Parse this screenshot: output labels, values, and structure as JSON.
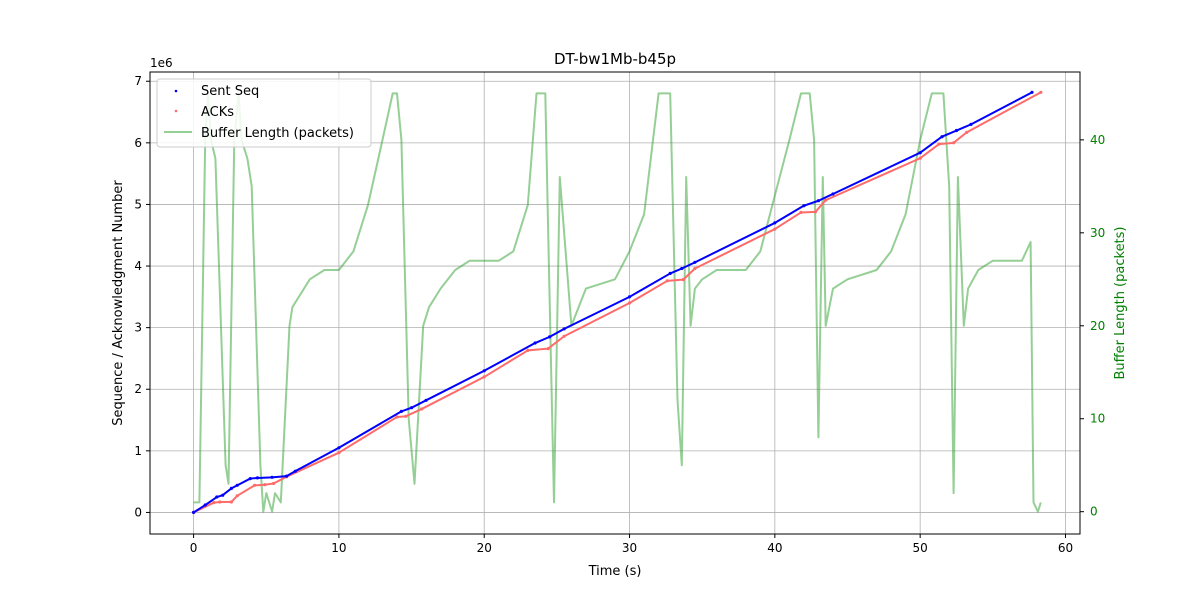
{
  "chart_data": {
    "type": "scatter",
    "title": "DT-bw1Mb-b45p",
    "xlabel": "Time (s)",
    "ylabel": "Sequence / Acknowledgment Number",
    "y_offset_label": "1e6",
    "y2label": "Buffer Length (packets)",
    "xlim": [
      -3,
      61
    ],
    "ylim": [
      -0.35,
      7.15
    ],
    "y2lim": [
      -2.4,
      47.3
    ],
    "x_ticks": [
      0,
      10,
      20,
      30,
      40,
      50,
      60
    ],
    "y_ticks": [
      0,
      1,
      2,
      3,
      4,
      5,
      6,
      7
    ],
    "y2_ticks": [
      0,
      10,
      20,
      30,
      40
    ],
    "grid": true,
    "legend_position": "top-left",
    "colors": {
      "sent": "#0000ff",
      "acks": "#ff6b6b",
      "buffer": "#2ca02c",
      "right_axis": "#008000"
    },
    "series": [
      {
        "name": "Sent Seq",
        "axis": "left",
        "style": "scatter",
        "x": [
          0,
          0.8,
          1.6,
          2.0,
          2.6,
          3.0,
          3.9,
          4.4,
          5.4,
          6.4,
          7.0,
          10.0,
          14.3,
          15.0,
          16.0,
          20.0,
          23.5,
          24.5,
          25.5,
          30.0,
          32.8,
          33.6,
          34.5,
          40.0,
          42.0,
          43.0,
          44.0,
          50.0,
          51.5,
          52.5,
          53.5,
          57.7
        ],
        "values": [
          0,
          0.12,
          0.25,
          0.28,
          0.39,
          0.44,
          0.55,
          0.56,
          0.57,
          0.59,
          0.67,
          1.05,
          1.64,
          1.7,
          1.82,
          2.3,
          2.75,
          2.85,
          2.98,
          3.5,
          3.88,
          3.96,
          4.06,
          4.7,
          4.98,
          5.06,
          5.17,
          5.84,
          6.1,
          6.2,
          6.3,
          6.82
        ]
      },
      {
        "name": "ACKs",
        "axis": "left",
        "style": "scatter",
        "x": [
          0,
          1.4,
          1.8,
          2.6,
          3.0,
          4.2,
          4.9,
          5.5,
          6.4,
          10.0,
          14.0,
          14.6,
          15.7,
          20.0,
          23.0,
          24.4,
          25.5,
          30.0,
          32.6,
          33.7,
          34.5,
          40.0,
          41.8,
          42.8,
          43.5,
          50.0,
          51.3,
          52.3,
          53.2,
          58.3
        ],
        "values": [
          0,
          0.16,
          0.17,
          0.17,
          0.27,
          0.44,
          0.45,
          0.47,
          0.58,
          0.97,
          1.55,
          1.56,
          1.68,
          2.2,
          2.63,
          2.66,
          2.86,
          3.4,
          3.76,
          3.78,
          3.96,
          4.6,
          4.87,
          4.88,
          5.07,
          5.75,
          5.98,
          6.0,
          6.17,
          6.82
        ]
      },
      {
        "name": "Buffer Length (packets)",
        "axis": "right",
        "style": "line",
        "x": [
          0,
          0.4,
          0.8,
          1.0,
          1.2,
          1.5,
          2.2,
          2.4,
          2.8,
          3.1,
          3.3,
          3.7,
          4.0,
          4.6,
          4.8,
          5.0,
          5.4,
          5.6,
          6.0,
          6.6,
          6.8,
          7.2,
          8.0,
          9.0,
          10.0,
          11.0,
          12.0,
          13.0,
          13.7,
          14.0,
          14.3,
          14.8,
          15.2,
          15.8,
          16.2,
          17.0,
          18.0,
          19.0,
          21.0,
          22.0,
          23.0,
          23.6,
          24.2,
          24.4,
          24.8,
          25.2,
          26.0,
          27.0,
          29.0,
          30.0,
          31.0,
          32.0,
          32.8,
          33.3,
          33.6,
          33.9,
          34.2,
          34.5,
          35.0,
          36.0,
          38.0,
          39.0,
          40.0,
          41.0,
          41.8,
          42.4,
          42.7,
          43.0,
          43.3,
          43.5,
          44.0,
          45.0,
          47.0,
          48.0,
          49.0,
          50.0,
          50.8,
          51.6,
          52.0,
          52.3,
          52.6,
          53.0,
          53.3,
          54.0,
          55.0,
          56.0,
          57.0,
          57.6,
          57.8,
          58.1,
          58.3
        ],
        "values": [
          1,
          1,
          40,
          45,
          40,
          38,
          5,
          3,
          40,
          45,
          40,
          38,
          35,
          5,
          0,
          2,
          0,
          2,
          1,
          20,
          22,
          23,
          25,
          26,
          26,
          28,
          33,
          40,
          45,
          45,
          40,
          10,
          3,
          20,
          22,
          24,
          26,
          27,
          27,
          28,
          33,
          45,
          45,
          30,
          1,
          36,
          20,
          24,
          25,
          28,
          32,
          45,
          45,
          12,
          5,
          36,
          20,
          24,
          25,
          26,
          26,
          28,
          34,
          40,
          45,
          45,
          40,
          8,
          36,
          20,
          24,
          25,
          26,
          28,
          32,
          40,
          45,
          45,
          35,
          2,
          36,
          20,
          24,
          26,
          27,
          27,
          27,
          29,
          1,
          0,
          1
        ]
      }
    ]
  }
}
